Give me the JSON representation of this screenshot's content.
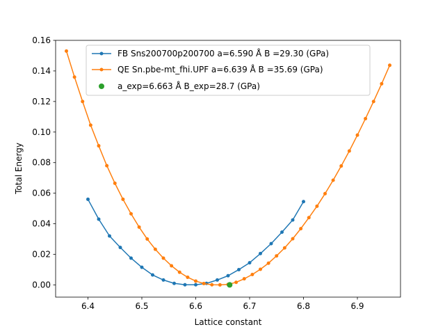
{
  "chart_data": {
    "type": "line",
    "xlabel": "Lattice constant",
    "ylabel": "Total Energy",
    "xlim": [
      6.34,
      6.98
    ],
    "ylim": [
      -0.008,
      0.16
    ],
    "xticks": [
      6.4,
      6.5,
      6.6,
      6.7,
      6.8,
      6.9
    ],
    "xtick_labels": [
      "6.4",
      "6.5",
      "6.6",
      "6.7",
      "6.8",
      "6.9"
    ],
    "yticks": [
      0.0,
      0.02,
      0.04,
      0.06,
      0.08,
      0.1,
      0.12,
      0.14,
      0.16
    ],
    "ytick_labels": [
      "0.00",
      "0.02",
      "0.04",
      "0.06",
      "0.08",
      "0.10",
      "0.12",
      "0.14",
      "0.16"
    ],
    "grid": false,
    "legend_position": "top-center",
    "series": [
      {
        "name": "FB Sns200700p200700 a=6.590 Å B =29.30 (GPa)",
        "color": "#1f77b4",
        "marker": "dot-line",
        "x": [
          6.4,
          6.42,
          6.44,
          6.46,
          6.48,
          6.5,
          6.52,
          6.54,
          6.56,
          6.58,
          6.6,
          6.62,
          6.64,
          6.66,
          6.68,
          6.7,
          6.72,
          6.74,
          6.76,
          6.78,
          6.8
        ],
        "y": [
          0.056,
          0.043,
          0.032,
          0.0245,
          0.0175,
          0.0115,
          0.0065,
          0.0032,
          0.001,
          0.0001,
          0.0001,
          0.001,
          0.0032,
          0.006,
          0.01,
          0.0145,
          0.0205,
          0.027,
          0.0345,
          0.0425,
          0.0545
        ]
      },
      {
        "name": "QE Sn.pbe-mt_fhi.UPF a=6.639 Å B =35.69 (GPa)",
        "color": "#ff7f0e",
        "marker": "dot-line",
        "x": [
          6.36,
          6.375,
          6.39,
          6.405,
          6.42,
          6.435,
          6.45,
          6.465,
          6.48,
          6.495,
          6.51,
          6.525,
          6.54,
          6.555,
          6.57,
          6.585,
          6.6,
          6.615,
          6.63,
          6.645,
          6.66,
          6.675,
          6.69,
          6.705,
          6.72,
          6.735,
          6.75,
          6.765,
          6.78,
          6.795,
          6.81,
          6.825,
          6.84,
          6.855,
          6.87,
          6.885,
          6.9,
          6.915,
          6.93,
          6.945,
          6.96
        ],
        "y": [
          0.153,
          0.136,
          0.12,
          0.1045,
          0.091,
          0.078,
          0.0665,
          0.056,
          0.0465,
          0.0378,
          0.03,
          0.0233,
          0.0175,
          0.0125,
          0.0083,
          0.005,
          0.0025,
          0.0009,
          0.0001,
          0.0,
          0.0003,
          0.0017,
          0.004,
          0.0068,
          0.0102,
          0.0142,
          0.019,
          0.0242,
          0.0302,
          0.0368,
          0.044,
          0.0515,
          0.0597,
          0.0685,
          0.0778,
          0.0876,
          0.098,
          0.1088,
          0.12,
          0.1316,
          0.1437
        ]
      },
      {
        "name": "a_exp=6.663 Å  B_exp=28.7 (GPa)",
        "color": "#2ca02c",
        "marker": "point",
        "x": [
          6.663
        ],
        "y": [
          0.0
        ]
      }
    ]
  }
}
